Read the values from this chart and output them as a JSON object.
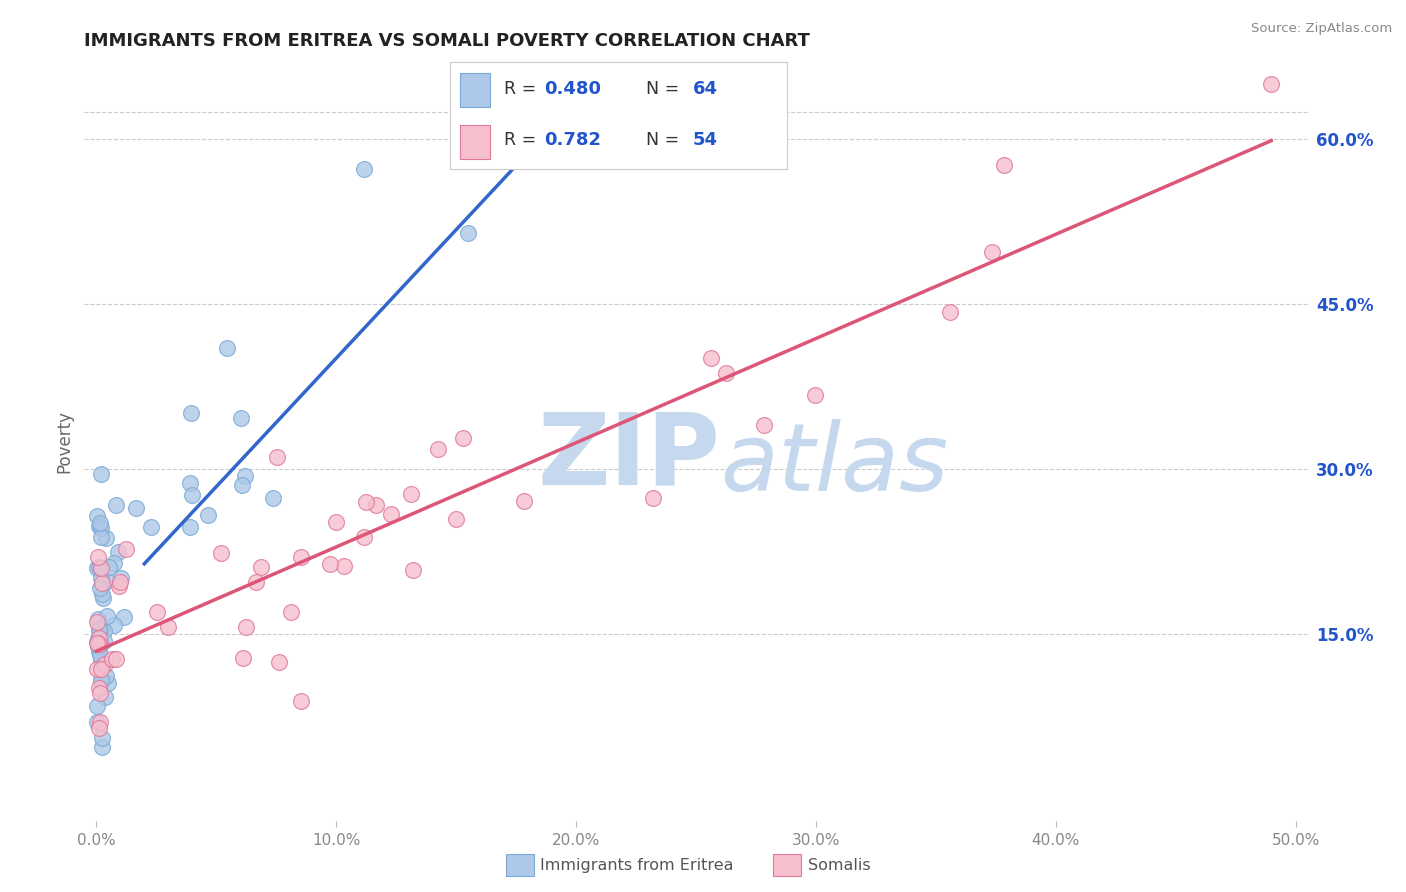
{
  "title": "IMMIGRANTS FROM ERITREA VS SOMALI POVERTY CORRELATION CHART",
  "source": "Source: ZipAtlas.com",
  "ylabel": "Poverty",
  "xlim": [
    -0.005,
    0.505
  ],
  "ylim": [
    -0.02,
    0.67
  ],
  "xticks": [
    0.0,
    0.1,
    0.2,
    0.3,
    0.4,
    0.5
  ],
  "xtick_labels": [
    "0.0%",
    "10.0%",
    "20.0%",
    "30.0%",
    "40.0%",
    "50.0%"
  ],
  "ytick_right_vals": [
    0.15,
    0.3,
    0.45,
    0.6
  ],
  "ytick_right_labels": [
    "15.0%",
    "30.0%",
    "45.0%",
    "60.0%"
  ],
  "series1_label": "Immigrants from Eritrea",
  "series1_R": 0.48,
  "series1_N": 64,
  "series1_color": "#adc8e8",
  "series1_edge": "#7aaad4",
  "series2_label": "Somalis",
  "series2_R": 0.782,
  "series2_N": 54,
  "series2_color": "#f5bfce",
  "series2_edge": "#e07898",
  "line1_color": "#3366cc",
  "line1_dash_color": "#99bbdd",
  "line2_color": "#dd5577",
  "watermark_zip": "ZIP",
  "watermark_atlas": "atlas",
  "watermark_color_zip": "#c5d8ee",
  "watermark_color_atlas": "#c5d8ee",
  "background_color": "#ffffff",
  "grid_color": "#cccccc",
  "title_color": "#222222",
  "legend_text_color": "#333333",
  "legend_R_color": "#2255cc",
  "axis_tick_color": "#888888",
  "bottom_legend_color": "#555555"
}
